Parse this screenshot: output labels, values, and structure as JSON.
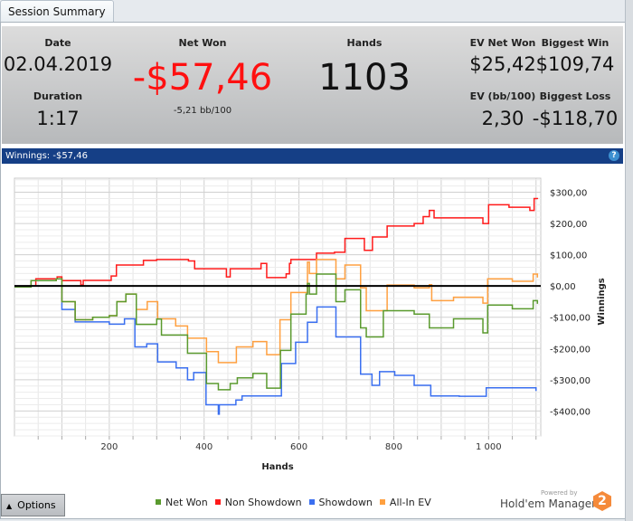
{
  "tab": {
    "label": "Session Summary"
  },
  "stats": {
    "date": {
      "label": "Date",
      "value": "02.04.2019"
    },
    "duration": {
      "label": "Duration",
      "value": "1:17"
    },
    "net_won": {
      "label": "Net Won",
      "value": "-$57,46",
      "sub": "-5,21 bb/100"
    },
    "hands": {
      "label": "Hands",
      "value": "1103"
    },
    "ev_net_won": {
      "label": "EV Net Won",
      "value": "$25,42"
    },
    "biggest_win": {
      "label": "Biggest Win",
      "value": "$109,74"
    },
    "ev_bb": {
      "label": "EV (bb/100)",
      "value": "2,30"
    },
    "biggest_loss": {
      "label": "Biggest Loss",
      "value": "-$118,70"
    }
  },
  "panel": {
    "title": "Winnings: -$57,46",
    "help": "?"
  },
  "footer": {
    "options_label": "Options",
    "powered_by": "Powered by",
    "brand": "Hold'em Manager",
    "brand_num": "2"
  },
  "colors": {
    "net_won": "#5a9a2e",
    "non_showdown": "#ff1a1a",
    "showdown": "#3a6ff0",
    "all_in_ev": "#ffa040",
    "accent": "#153f86"
  },
  "chart_data": {
    "type": "line",
    "xlabel": "Hands",
    "ylabel": "Winnings",
    "xlim": [
      0,
      1110
    ],
    "ylim": [
      -480,
      345
    ],
    "xticks": [
      200,
      400,
      600,
      800,
      1000
    ],
    "xtick_labels": [
      "200",
      "400",
      "600",
      "800",
      "1 000"
    ],
    "yticks": [
      300,
      200,
      100,
      0,
      -100,
      -200,
      -300,
      -400
    ],
    "ytick_labels": [
      "$300,00",
      "$200,00",
      "$100,00",
      "$0,00",
      "-$100,00",
      "-$200,00",
      "-$300,00",
      "-$400,00"
    ],
    "grid": true,
    "legend_position": "bottom",
    "series": [
      {
        "name": "Net Won",
        "color": "#5a9a2e",
        "points": [
          [
            0,
            -3
          ],
          [
            35,
            17
          ],
          [
            88,
            23
          ],
          [
            100,
            -50
          ],
          [
            128,
            -108
          ],
          [
            165,
            -100
          ],
          [
            200,
            -95
          ],
          [
            216,
            -50
          ],
          [
            235,
            -26
          ],
          [
            257,
            -123
          ],
          [
            300,
            -106
          ],
          [
            310,
            -157
          ],
          [
            365,
            -215
          ],
          [
            405,
            -312
          ],
          [
            430,
            -332
          ],
          [
            455,
            -312
          ],
          [
            470,
            -294
          ],
          [
            503,
            -280
          ],
          [
            532,
            -327
          ],
          [
            561,
            -206
          ],
          [
            583,
            -90
          ],
          [
            615,
            -26
          ],
          [
            618,
            8
          ],
          [
            622,
            -26
          ],
          [
            637,
            38
          ],
          [
            678,
            -50
          ],
          [
            697,
            -12
          ],
          [
            730,
            -134
          ],
          [
            742,
            -163
          ],
          [
            778,
            -79
          ],
          [
            843,
            -90
          ],
          [
            875,
            -134
          ],
          [
            926,
            -105
          ],
          [
            988,
            -150
          ],
          [
            998,
            -61
          ],
          [
            1050,
            -73
          ],
          [
            1094,
            -47
          ],
          [
            1103,
            -57
          ]
        ]
      },
      {
        "name": "Non Showdown",
        "color": "#ff1a1a",
        "points": [
          [
            0,
            0
          ],
          [
            45,
            23
          ],
          [
            90,
            29
          ],
          [
            100,
            17
          ],
          [
            140,
            3
          ],
          [
            145,
            18
          ],
          [
            204,
            32
          ],
          [
            215,
            67
          ],
          [
            272,
            82
          ],
          [
            300,
            85
          ],
          [
            367,
            80
          ],
          [
            380,
            55
          ],
          [
            447,
            29
          ],
          [
            455,
            55
          ],
          [
            520,
            72
          ],
          [
            532,
            27
          ],
          [
            573,
            39
          ],
          [
            580,
            72
          ],
          [
            583,
            85
          ],
          [
            637,
            105
          ],
          [
            675,
            108
          ],
          [
            697,
            152
          ],
          [
            738,
            114
          ],
          [
            755,
            157
          ],
          [
            786,
            192
          ],
          [
            843,
            200
          ],
          [
            862,
            222
          ],
          [
            875,
            242
          ],
          [
            885,
            218
          ],
          [
            988,
            200
          ],
          [
            1000,
            260
          ],
          [
            1043,
            252
          ],
          [
            1087,
            242
          ],
          [
            1096,
            280
          ],
          [
            1103,
            278
          ]
        ]
      },
      {
        "name": "Showdown",
        "color": "#3a6ff0",
        "points": [
          [
            0,
            0
          ],
          [
            100,
            -75
          ],
          [
            128,
            -115
          ],
          [
            200,
            -122
          ],
          [
            232,
            -105
          ],
          [
            254,
            -195
          ],
          [
            279,
            -185
          ],
          [
            302,
            -243
          ],
          [
            341,
            -262
          ],
          [
            365,
            -300
          ],
          [
            378,
            -277
          ],
          [
            404,
            -380
          ],
          [
            430,
            -410
          ],
          [
            432,
            -380
          ],
          [
            467,
            -365
          ],
          [
            480,
            -352
          ],
          [
            563,
            -248
          ],
          [
            593,
            -180
          ],
          [
            618,
            -116
          ],
          [
            638,
            -67
          ],
          [
            678,
            -163
          ],
          [
            730,
            -282
          ],
          [
            754,
            -318
          ],
          [
            770,
            -274
          ],
          [
            802,
            -286
          ],
          [
            843,
            -318
          ],
          [
            878,
            -352
          ],
          [
            938,
            -353
          ],
          [
            995,
            -326
          ],
          [
            1100,
            -336
          ]
        ]
      },
      {
        "name": "All-In EV",
        "color": "#ffa040",
        "points": [
          [
            0,
            -3
          ],
          [
            35,
            17
          ],
          [
            88,
            23
          ],
          [
            100,
            -50
          ],
          [
            128,
            -108
          ],
          [
            165,
            -100
          ],
          [
            200,
            -95
          ],
          [
            216,
            -50
          ],
          [
            235,
            -26
          ],
          [
            257,
            -75
          ],
          [
            280,
            -50
          ],
          [
            302,
            -105
          ],
          [
            340,
            -128
          ],
          [
            365,
            -167
          ],
          [
            405,
            -210
          ],
          [
            430,
            -245
          ],
          [
            468,
            -195
          ],
          [
            503,
            -178
          ],
          [
            532,
            -220
          ],
          [
            560,
            -108
          ],
          [
            583,
            -21
          ],
          [
            618,
            76
          ],
          [
            622,
            40
          ],
          [
            637,
            85
          ],
          [
            678,
            23
          ],
          [
            697,
            67
          ],
          [
            730,
            -6
          ],
          [
            742,
            -79
          ],
          [
            786,
            3
          ],
          [
            843,
            -6
          ],
          [
            875,
            4
          ],
          [
            880,
            -47
          ],
          [
            926,
            -36
          ],
          [
            988,
            -55
          ],
          [
            998,
            23
          ],
          [
            1050,
            15
          ],
          [
            1094,
            38
          ],
          [
            1103,
            27
          ]
        ]
      }
    ]
  }
}
